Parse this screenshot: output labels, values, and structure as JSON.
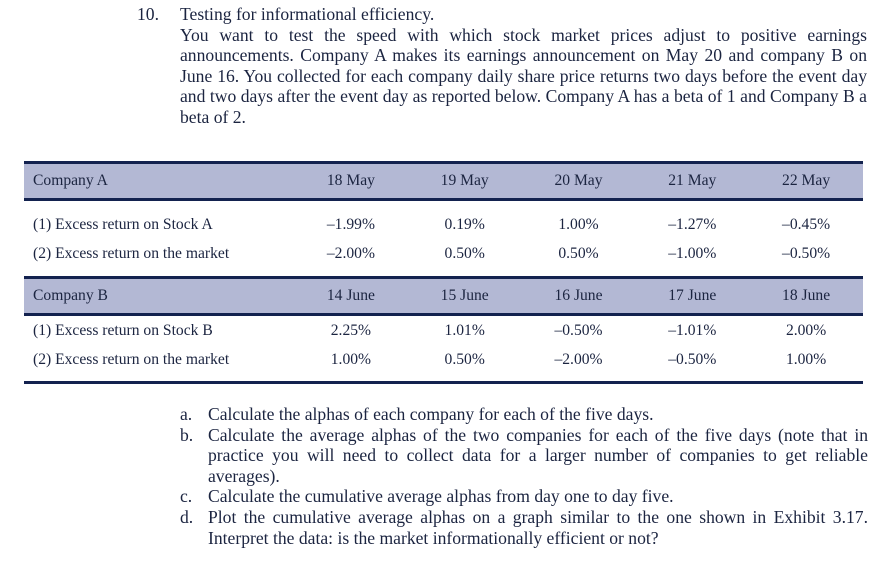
{
  "problem": {
    "number": "10.",
    "title": "Testing for informational efficiency.",
    "text": "You want to test the speed with which stock market prices adjust to positive earnings announcements. Company A makes its earnings announcement on May 20 and company B on June 16. You collected for each company daily share price returns two days before the event day and two days after the event day as reported below. Company A has a beta of 1 and Company B a beta of 2."
  },
  "table": {
    "colors": {
      "header_bg": "#b3b8d4",
      "rule": "#13224f",
      "text": "#1b2440"
    },
    "company_a": {
      "header": "Company A",
      "dates": [
        "18 May",
        "19 May",
        "20 May",
        "21 May",
        "22 May"
      ],
      "rows": [
        {
          "label": "(1) Excess return on Stock A",
          "values": [
            "–1.99%",
            "0.19%",
            "1.00%",
            "–1.27%",
            "–0.45%"
          ]
        },
        {
          "label": "(2) Excess return on the market",
          "values": [
            "–2.00%",
            "0.50%",
            "0.50%",
            "–1.00%",
            "–0.50%"
          ]
        }
      ]
    },
    "company_b": {
      "header": "Company B",
      "dates": [
        "14 June",
        "15 June",
        "16 June",
        "17 June",
        "18 June"
      ],
      "rows": [
        {
          "label": "(1) Excess return on Stock B",
          "values": [
            "2.25%",
            "1.01%",
            "–0.50%",
            "–1.01%",
            "2.00%"
          ]
        },
        {
          "label": "(2) Excess return on the market",
          "values": [
            "1.00%",
            "0.50%",
            "–2.00%",
            "–0.50%",
            "1.00%"
          ]
        }
      ]
    }
  },
  "questions": [
    {
      "label": "a.",
      "text": "Calculate the alphas of each company for each of the five days."
    },
    {
      "label": "b.",
      "text": "Calculate the average alphas of the two companies for each of the five days (note that in practice you will need to collect data for a larger number of companies to get reliable averages)."
    },
    {
      "label": "c.",
      "text": "Calculate the cumulative average alphas from day one to day five."
    },
    {
      "label": "d.",
      "text": "Plot the cumulative average alphas on a graph similar to the one shown in Exhibit 3.17. Interpret the data: is the market informationally efficient or not?"
    }
  ]
}
